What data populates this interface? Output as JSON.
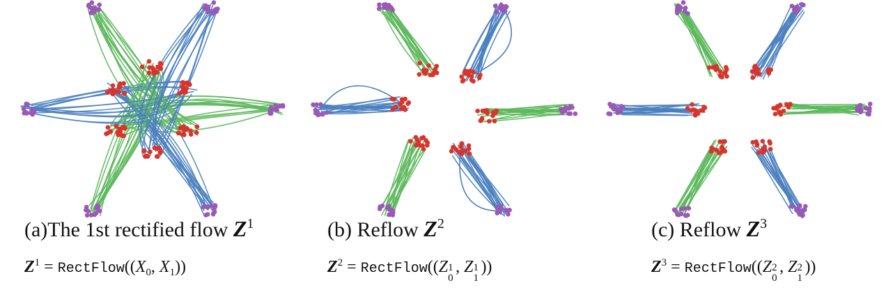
{
  "panels": [
    {
      "caption_prefix": "(a)The 1st rectified flow ",
      "caption_symbol": "Z",
      "caption_sup": "1",
      "formula": {
        "lhs": "Z",
        "lhs_sup": "1",
        "eq": " = ",
        "func": "RectFlow",
        "open": "((",
        "a": "X",
        "a_sub": "0",
        "sep": ", ",
        "b": "X",
        "b_sub": "1",
        "close": "))"
      }
    },
    {
      "caption_prefix": "(b) Reflow ",
      "caption_symbol": "Z",
      "caption_sup": "2",
      "formula": {
        "lhs": "Z",
        "lhs_sup": "2",
        "eq": " = ",
        "func": "RectFlow",
        "open": "((",
        "a": "Z",
        "a_sup": "1",
        "a_sub": "0",
        "sep": ", ",
        "b": "Z",
        "b_sup": "1",
        "b_sub": "1",
        "close": "))"
      }
    },
    {
      "caption_prefix": "(c) Reflow ",
      "caption_symbol": "Z",
      "caption_sup": "3",
      "formula": {
        "lhs": "Z",
        "lhs_sup": "3",
        "eq": " = ",
        "func": "RectFlow",
        "open": "((",
        "a": "Z",
        "a_sup": "2",
        "a_sub": "0",
        "sep": ", ",
        "b": "Z",
        "b_sup": "2",
        "b_sub": "1",
        "close": "))"
      }
    }
  ],
  "colors": {
    "blue_path": "#4a7fbf",
    "green_path": "#5cb85c",
    "source_points": "#d9342b",
    "target_points": "#9b59b6"
  }
}
